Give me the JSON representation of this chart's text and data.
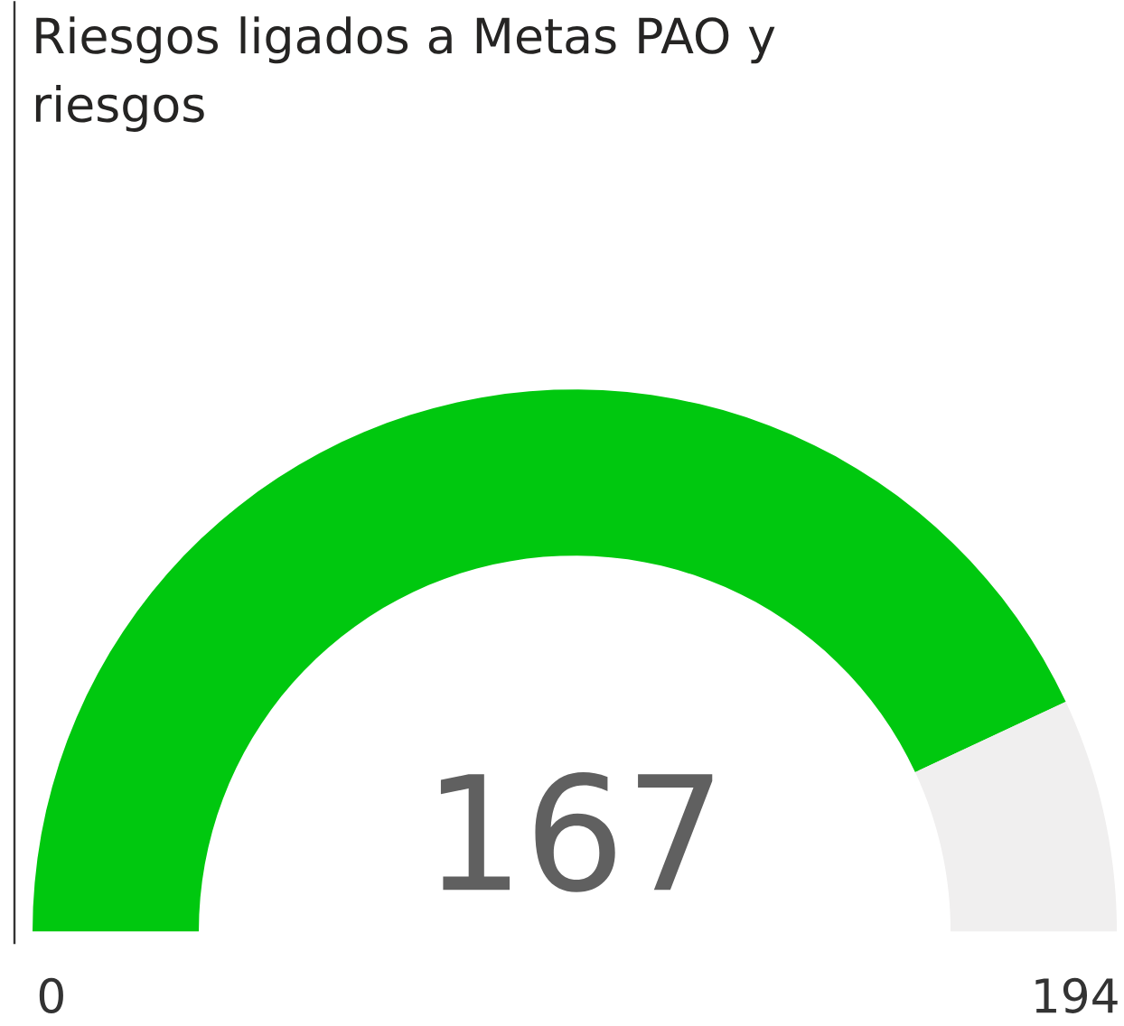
{
  "chart_data": {
    "type": "donut",
    "title": "Riesgos ligados a Metas PAO y riesgos",
    "categories": [
      null,
      null
    ],
    "values": [
      167,
      27
    ],
    "colors": [
      "#00c80f",
      "#f0efef"
    ],
    "value_labels": [
      "167",
      null
    ],
    "annotations": [
      "0",
      "194"
    ]
  }
}
